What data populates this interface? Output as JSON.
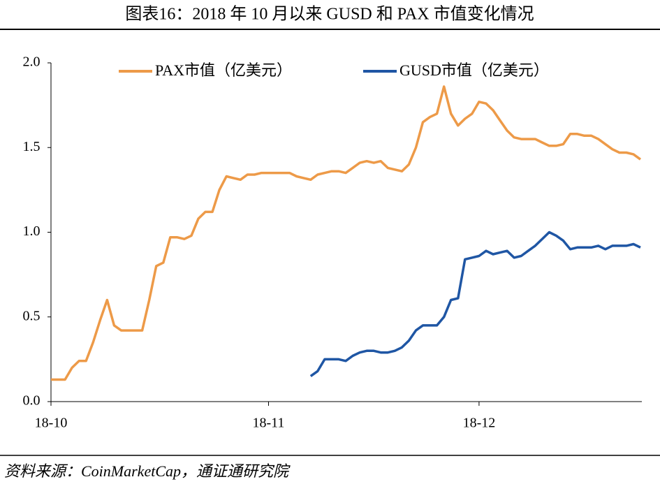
{
  "chart_data": {
    "type": "line",
    "title": "图表16：2018 年 10 月以来 GUSD 和 PAX 市值变化情况",
    "source": "资料来源：CoinMarketCap，通证通研究院",
    "categories": [
      "18-10",
      null,
      null,
      null,
      null,
      null,
      null,
      null,
      null,
      null,
      null,
      null,
      null,
      null,
      null,
      null,
      null,
      null,
      null,
      null,
      null,
      null,
      null,
      null,
      null,
      null,
      null,
      null,
      null,
      null,
      null,
      "18-11",
      null,
      null,
      null,
      null,
      null,
      null,
      null,
      null,
      null,
      null,
      null,
      null,
      null,
      null,
      null,
      null,
      null,
      null,
      null,
      null,
      null,
      null,
      null,
      null,
      null,
      null,
      null,
      null,
      null,
      "18-12",
      null,
      null,
      null,
      null,
      null,
      null,
      null,
      null,
      null,
      null,
      null,
      null,
      null,
      null,
      null,
      null,
      null,
      null,
      null,
      null,
      null,
      null,
      null
    ],
    "series": [
      {
        "name": "PAX市值（亿美元）",
        "color": "#ed9a48",
        "values": [
          0.13,
          0.13,
          0.13,
          0.2,
          0.24,
          0.24,
          0.35,
          0.48,
          0.6,
          0.45,
          0.42,
          0.42,
          0.42,
          0.42,
          0.6,
          0.8,
          0.82,
          0.97,
          0.97,
          0.96,
          0.98,
          1.08,
          1.12,
          1.12,
          1.25,
          1.33,
          1.32,
          1.31,
          1.34,
          1.34,
          1.35,
          1.35,
          1.35,
          1.35,
          1.35,
          1.33,
          1.32,
          1.31,
          1.34,
          1.35,
          1.36,
          1.36,
          1.35,
          1.38,
          1.41,
          1.42,
          1.41,
          1.42,
          1.38,
          1.37,
          1.36,
          1.4,
          1.5,
          1.65,
          1.68,
          1.7,
          1.86,
          1.7,
          1.63,
          1.67,
          1.7,
          1.77,
          1.76,
          1.72,
          1.66,
          1.6,
          1.56,
          1.55,
          1.55,
          1.55,
          1.53,
          1.51,
          1.51,
          1.52,
          1.58,
          1.58,
          1.57,
          1.57,
          1.55,
          1.52,
          1.49,
          1.47,
          1.47,
          1.46,
          1.43
        ]
      },
      {
        "name": "GUSD市值（亿美元）",
        "color": "#1f56a4",
        "values": [
          null,
          null,
          null,
          null,
          null,
          null,
          null,
          null,
          null,
          null,
          null,
          null,
          null,
          null,
          null,
          null,
          null,
          null,
          null,
          null,
          null,
          null,
          null,
          null,
          null,
          null,
          null,
          null,
          null,
          null,
          null,
          null,
          null,
          null,
          null,
          null,
          null,
          0.15,
          0.18,
          0.25,
          0.25,
          0.25,
          0.24,
          0.27,
          0.29,
          0.3,
          0.3,
          0.29,
          0.29,
          0.3,
          0.32,
          0.36,
          0.42,
          0.45,
          0.45,
          0.45,
          0.5,
          0.6,
          0.61,
          0.84,
          0.85,
          0.86,
          0.89,
          0.87,
          0.88,
          0.89,
          0.85,
          0.86,
          0.89,
          0.92,
          0.96,
          1.0,
          0.98,
          0.95,
          0.9,
          0.91,
          0.91,
          0.91,
          0.92,
          0.9,
          0.92,
          0.92,
          0.92,
          0.93,
          0.91
        ]
      }
    ],
    "ylim": [
      0,
      2
    ],
    "yticks": [
      {
        "value": 0,
        "label": "0.0"
      },
      {
        "value": 0.5,
        "label": "0.5"
      },
      {
        "value": 1,
        "label": "1.0"
      },
      {
        "value": 1.5,
        "label": "1.5"
      },
      {
        "value": 2,
        "label": "2.0"
      }
    ],
    "grid": false,
    "legend": "top"
  }
}
